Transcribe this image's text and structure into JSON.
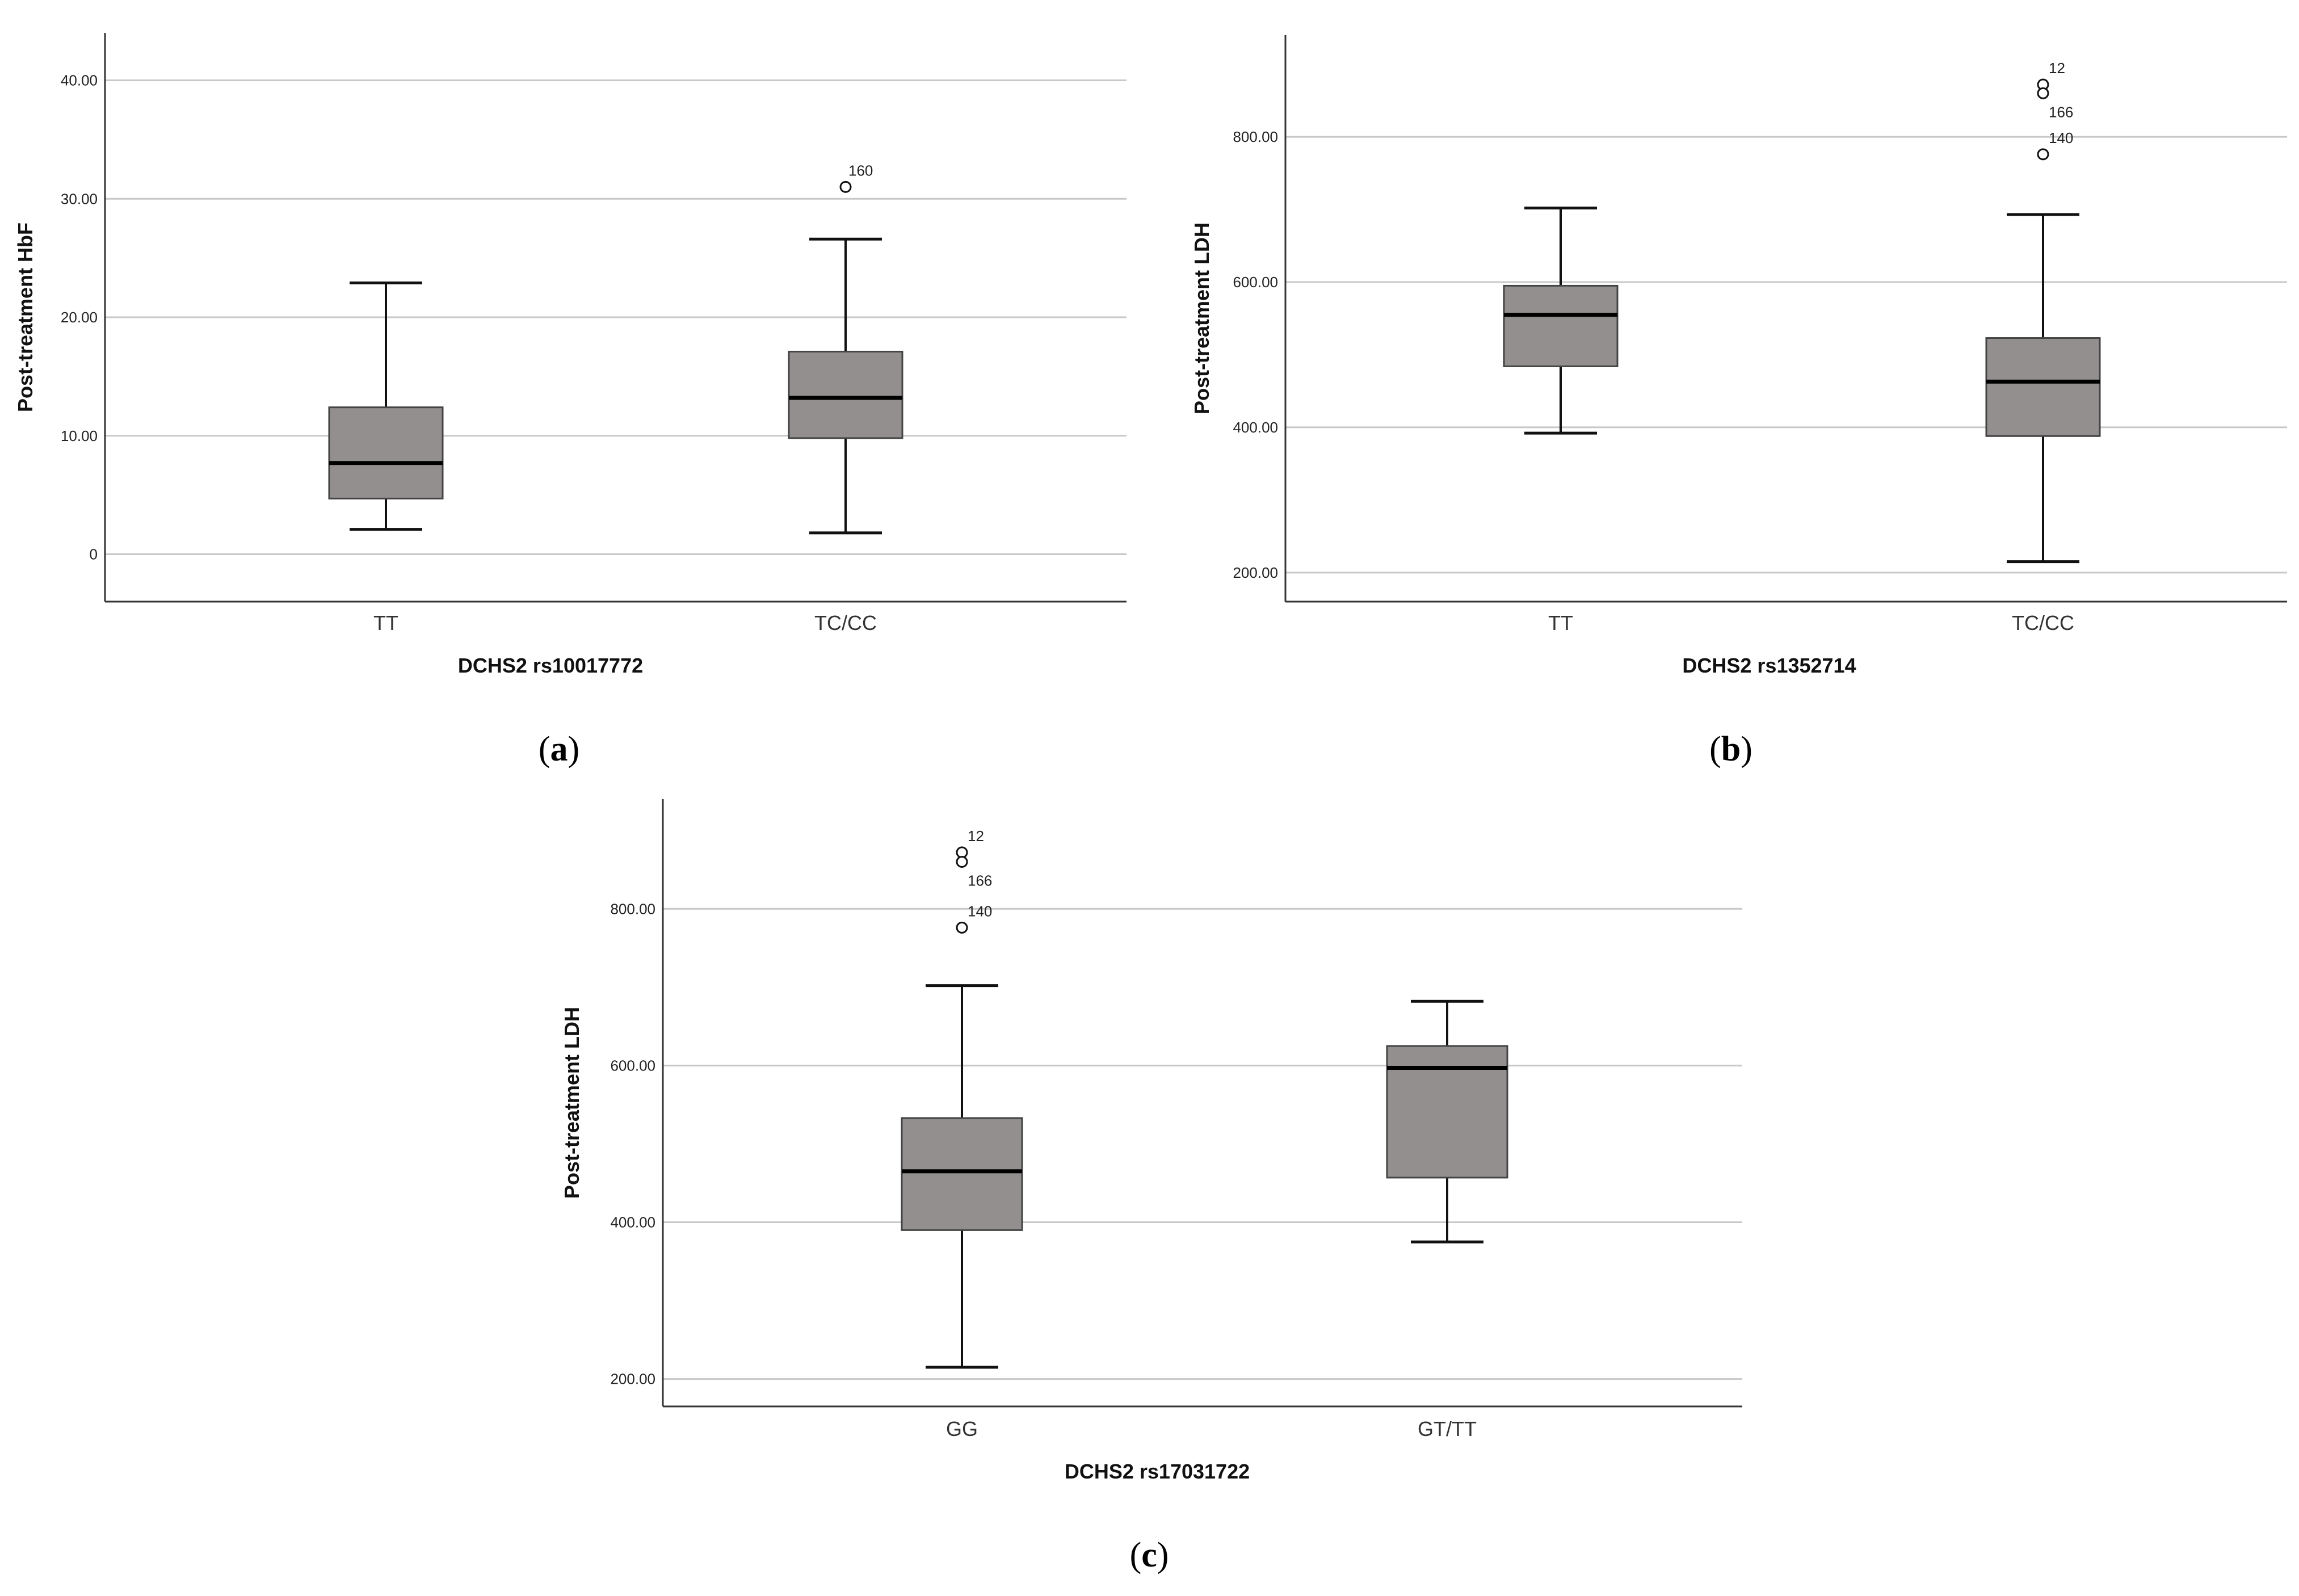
{
  "figure": {
    "colors": {
      "box_fill": "#948f8f",
      "box_stroke": "#444444",
      "whisker": "#111111",
      "median": "#000000",
      "grid": "#c8c8c8",
      "axis": "#333333",
      "background": "#ffffff"
    }
  },
  "chart_data": [
    {
      "panel": "a",
      "caption_letter": "a",
      "type": "boxplot",
      "title": "",
      "xlabel": "DCHS2 rs10017772",
      "ylabel": "Post-treatment HbF",
      "ylim": [
        -4,
        44
      ],
      "yticks": [
        0,
        10,
        20,
        30,
        40
      ],
      "ytick_labels": [
        "0",
        "10.00",
        "20.00",
        "30.00",
        "40.00"
      ],
      "grid": true,
      "categories": [
        "TT",
        "TC/CC"
      ],
      "boxes": [
        {
          "category": "TT",
          "whisker_low": 2.1,
          "q1": 4.7,
          "median": 7.7,
          "q3": 12.4,
          "whisker_high": 22.9,
          "outliers": []
        },
        {
          "category": "TC/CC",
          "whisker_low": 1.8,
          "q1": 9.8,
          "median": 13.2,
          "q3": 17.1,
          "whisker_high": 26.6,
          "outliers": [
            {
              "value": 31.0,
              "label": "160"
            }
          ]
        }
      ]
    },
    {
      "panel": "b",
      "caption_letter": "b",
      "type": "boxplot",
      "title": "",
      "xlabel": "DCHS2 rs1352714",
      "ylabel": "Post-treatment LDH",
      "ylim": [
        160,
        940
      ],
      "yticks": [
        200,
        400,
        600,
        800
      ],
      "ytick_labels": [
        "200.00",
        "400.00",
        "600.00",
        "800.00"
      ],
      "grid": true,
      "categories": [
        "TT",
        "TC/CC"
      ],
      "boxes": [
        {
          "category": "TT",
          "whisker_low": 392,
          "q1": 484,
          "median": 555,
          "q3": 595,
          "whisker_high": 702,
          "outliers": []
        },
        {
          "category": "TC/CC",
          "whisker_low": 215,
          "q1": 388,
          "median": 463,
          "q3": 523,
          "whisker_high": 693,
          "outliers": [
            {
              "value": 872,
              "label": "12"
            },
            {
              "value": 860,
              "label": "166"
            },
            {
              "value": 776,
              "label": "140"
            }
          ]
        }
      ]
    },
    {
      "panel": "c",
      "caption_letter": "c",
      "type": "boxplot",
      "title": "",
      "xlabel": "DCHS2 rs17031722",
      "ylabel": "Post-treatment LDH",
      "ylim": [
        165,
        940
      ],
      "yticks": [
        200,
        400,
        600,
        800
      ],
      "ytick_labels": [
        "200.00",
        "400.00",
        "600.00",
        "800.00"
      ],
      "grid": true,
      "categories": [
        "GG",
        "GT/TT"
      ],
      "boxes": [
        {
          "category": "GG",
          "whisker_low": 215,
          "q1": 390,
          "median": 465,
          "q3": 533,
          "whisker_high": 702,
          "outliers": [
            {
              "value": 872,
              "label": "12"
            },
            {
              "value": 860,
              "label": "166"
            },
            {
              "value": 776,
              "label": "140"
            }
          ]
        },
        {
          "category": "GT/TT",
          "whisker_low": 375,
          "q1": 457,
          "median": 597,
          "q3": 625,
          "whisker_high": 682,
          "outliers": []
        }
      ]
    }
  ]
}
